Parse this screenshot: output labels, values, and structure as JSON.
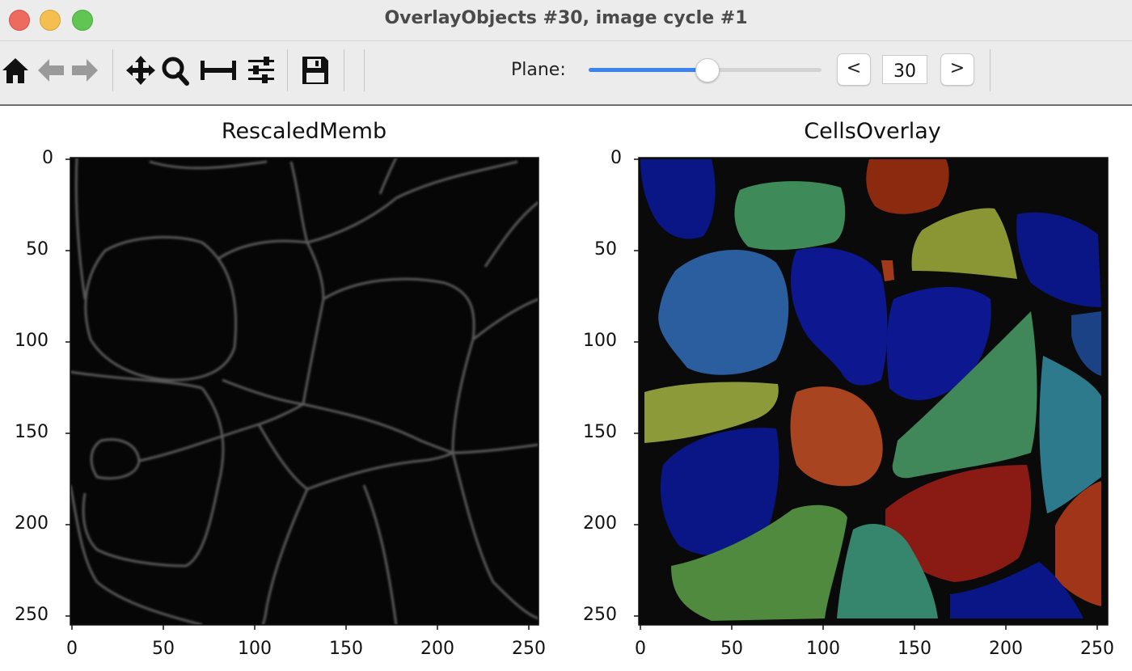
{
  "window": {
    "title": "OverlayObjects #30, image cycle #1"
  },
  "toolbar": {
    "icons": [
      "home-icon",
      "back-arrow-icon",
      "forward-arrow-icon",
      "pan-icon",
      "zoom-icon",
      "subplots-icon",
      "configure-icon",
      "save-icon"
    ],
    "plane_label": "Plane:",
    "plane_value": "30",
    "prev_label": "<",
    "next_label": ">",
    "slider_fraction": 0.5,
    "accent_color": "#3a83f0"
  },
  "axes": [
    {
      "title": "RescaledMemb",
      "xticks": [
        "0",
        "50",
        "100",
        "150",
        "200",
        "250"
      ],
      "yticks": [
        "0",
        "50",
        "100",
        "150",
        "200",
        "250"
      ]
    },
    {
      "title": "CellsOverlay",
      "xticks": [
        "0",
        "50",
        "100",
        "150",
        "200",
        "250"
      ],
      "yticks": [
        "0",
        "50",
        "100",
        "150",
        "200",
        "250"
      ]
    }
  ]
}
